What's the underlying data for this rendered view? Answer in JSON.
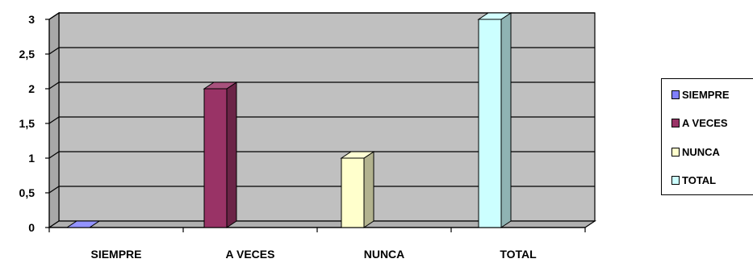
{
  "chart_data": {
    "type": "bar",
    "categories": [
      "SIEMPRE",
      "A VECES",
      "NUNCA",
      "TOTAL"
    ],
    "series": [
      {
        "name": "SIEMPRE",
        "values": [
          0,
          null,
          null,
          null
        ],
        "color": "#8080FF"
      },
      {
        "name": "A VECES",
        "values": [
          null,
          2,
          null,
          null
        ],
        "color": "#993366"
      },
      {
        "name": "NUNCA",
        "values": [
          null,
          null,
          1,
          null
        ],
        "color": "#FFFFCC"
      },
      {
        "name": "TOTAL",
        "values": [
          null,
          null,
          null,
          3
        ],
        "color": "#CCFFFF"
      }
    ],
    "y_ticks": [
      "0",
      "0,5",
      "1",
      "1,5",
      "2",
      "2,5",
      "3"
    ],
    "ylim": [
      0,
      3
    ],
    "grid": true,
    "legend_position": "right",
    "style": "3d-column",
    "wall_color": "#C0C0C0"
  }
}
